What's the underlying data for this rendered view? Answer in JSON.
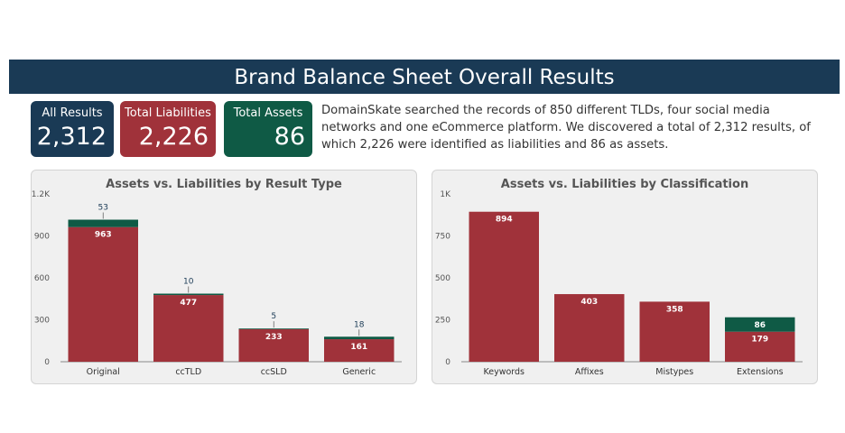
{
  "banner": {
    "title": "Brand Balance Sheet Overall Results"
  },
  "kpis": {
    "all_label": "All Results",
    "all_value": "2,312",
    "liab_label": "Total Liabilities",
    "liab_value": "2,226",
    "assets_label": "Total Assets",
    "assets_value": "86"
  },
  "summary": {
    "part1": "DomainSkate searched the records of 850 different TLDs, four social media networks and one eCommerce platform. We discovered a total of ",
    "total": "2,312",
    "part2": " results, of which ",
    "liab": "2,226",
    "part3": " were identified as liabilities and ",
    "assets": "86",
    "part4": " as assets."
  },
  "colors": {
    "liabilities": "#a0323a",
    "assets": "#0f5a45",
    "navy": "#1a3a55"
  },
  "chart_data": [
    {
      "type": "bar",
      "stacked": true,
      "title": "Assets vs. Liabilities by Result Type",
      "categories": [
        "Original",
        "ccTLD",
        "ccSLD",
        "Generic"
      ],
      "series": [
        {
          "key": "liabilities",
          "values": [
            963,
            477,
            233,
            161
          ]
        },
        {
          "key": "assets",
          "values": [
            53,
            10,
            5,
            18
          ]
        }
      ],
      "ylim": [
        0,
        1200
      ],
      "yticks": [
        0,
        300,
        600,
        900,
        1200
      ],
      "ytick_labels": [
        "0",
        "300",
        "600",
        "900",
        "1.2K"
      ]
    },
    {
      "type": "bar",
      "stacked": true,
      "title": "Assets vs. Liabilities by Classification",
      "categories": [
        "Keywords",
        "Affixes",
        "Mistypes",
        "Extensions"
      ],
      "series": [
        {
          "key": "liabilities",
          "values": [
            894,
            403,
            358,
            179
          ]
        },
        {
          "key": "assets",
          "values": [
            0,
            0,
            0,
            86
          ]
        }
      ],
      "ylim": [
        0,
        1000
      ],
      "yticks": [
        0,
        250,
        500,
        750,
        1000
      ],
      "ytick_labels": [
        "0",
        "250",
        "500",
        "750",
        "1K"
      ]
    }
  ]
}
